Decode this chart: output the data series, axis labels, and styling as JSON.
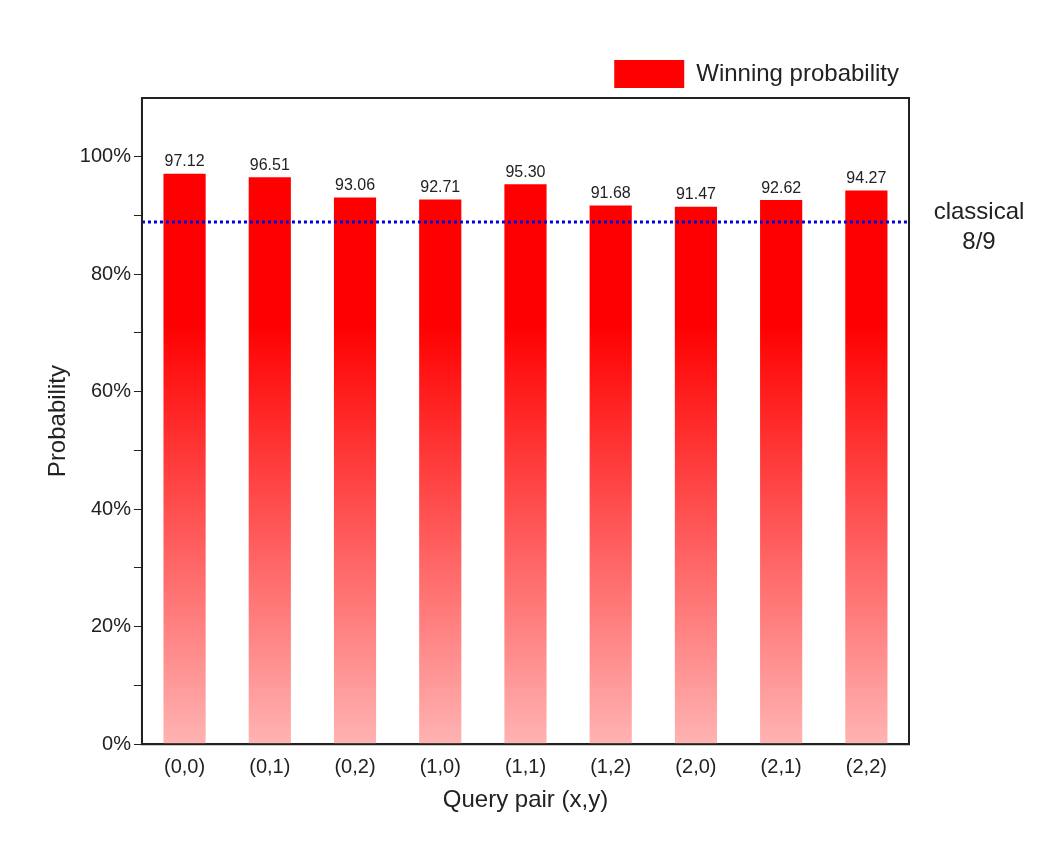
{
  "chart_data": {
    "type": "bar",
    "xlabel": "Query pair (x,y)",
    "ylabel": "Probability",
    "categories": [
      "(0,0)",
      "(0,1)",
      "(0,2)",
      "(1,0)",
      "(1,1)",
      "(1,2)",
      "(2,0)",
      "(2,1)",
      "(2,2)"
    ],
    "series": [
      {
        "name": "Winning probability",
        "color": "#ff0000",
        "values": [
          97.12,
          96.51,
          93.06,
          92.71,
          95.3,
          91.68,
          91.47,
          92.62,
          94.27
        ],
        "value_labels": [
          "97.12",
          "96.51",
          "93.06",
          "92.71",
          "95.30",
          "91.68",
          "91.47",
          "92.62",
          "94.27"
        ]
      }
    ],
    "ylim": [
      0,
      110
    ],
    "yticks": [
      {
        "value": 0,
        "label": "0%"
      },
      {
        "value": 10,
        "label": null
      },
      {
        "value": 20,
        "label": "20%"
      },
      {
        "value": 30,
        "label": null
      },
      {
        "value": 40,
        "label": "40%"
      },
      {
        "value": 50,
        "label": null
      },
      {
        "value": 60,
        "label": "60%"
      },
      {
        "value": 70,
        "label": null
      },
      {
        "value": 80,
        "label": "80%"
      },
      {
        "value": 90,
        "label": null
      },
      {
        "value": 100,
        "label": "100%"
      }
    ],
    "ref_lines": [
      {
        "axis": "y",
        "value": 88.89,
        "label": "classical\n8/9",
        "color": "#0000dd",
        "line_style": "dotted"
      }
    ],
    "legend": "top right",
    "grid": false
  }
}
